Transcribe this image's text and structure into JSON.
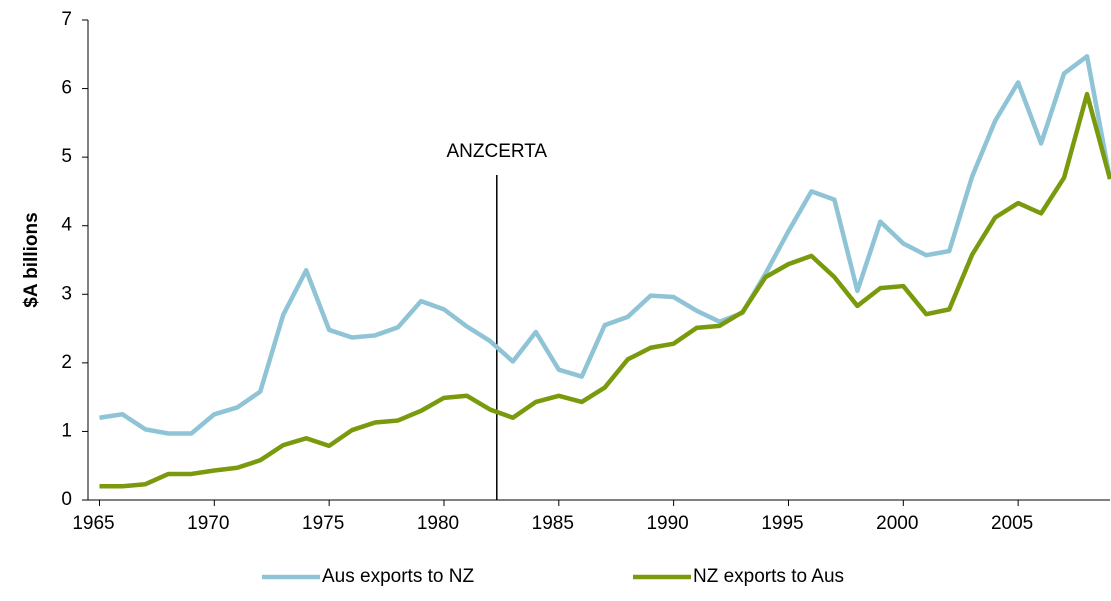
{
  "chart_data": {
    "type": "line",
    "y_label": "$A billions",
    "x": [
      1965,
      1966,
      1967,
      1968,
      1969,
      1970,
      1971,
      1972,
      1973,
      1974,
      1975,
      1976,
      1977,
      1978,
      1979,
      1980,
      1981,
      1982,
      1983,
      1984,
      1985,
      1986,
      1987,
      1988,
      1989,
      1990,
      1991,
      1992,
      1993,
      1994,
      1995,
      1996,
      1997,
      1998,
      1999,
      2000,
      2001,
      2002,
      2003,
      2004,
      2005,
      2006,
      2007,
      2008,
      2009
    ],
    "series": [
      {
        "name": "Aus exports to NZ",
        "color": "#8fc3d6",
        "values": [
          1.2,
          1.25,
          1.03,
          0.97,
          0.97,
          1.25,
          1.35,
          1.58,
          2.7,
          3.35,
          2.48,
          2.37,
          2.4,
          2.52,
          2.9,
          2.78,
          2.53,
          2.32,
          2.02,
          2.45,
          1.9,
          1.8,
          2.55,
          2.67,
          2.98,
          2.96,
          2.76,
          2.6,
          2.73,
          3.3,
          3.92,
          4.5,
          4.38,
          3.05,
          4.06,
          3.74,
          3.57,
          3.63,
          4.72,
          5.53,
          6.09,
          5.2,
          6.22,
          6.47,
          4.68
        ]
      },
      {
        "name": "NZ exports to Aus",
        "color": "#7a9a0e",
        "values": [
          0.2,
          0.2,
          0.23,
          0.38,
          0.38,
          0.43,
          0.47,
          0.58,
          0.8,
          0.9,
          0.79,
          1.02,
          1.13,
          1.16,
          1.3,
          1.49,
          1.52,
          1.32,
          1.2,
          1.43,
          1.52,
          1.43,
          1.64,
          2.05,
          2.22,
          2.28,
          2.51,
          2.54,
          2.74,
          3.25,
          3.44,
          3.56,
          3.25,
          2.83,
          3.09,
          3.12,
          2.71,
          2.78,
          3.58,
          4.12,
          4.33,
          4.18,
          4.7,
          5.92,
          4.68
        ]
      }
    ],
    "annotation": {
      "text": "ANZCERTA",
      "x": 1982.3
    },
    "xlim": [
      1964.5,
      2009
    ],
    "xticks": [
      1965,
      1970,
      1975,
      1980,
      1985,
      1990,
      1995,
      2000,
      2005
    ],
    "ylim": [
      0,
      7
    ],
    "yticks": [
      0,
      1,
      2,
      3,
      4,
      5,
      6,
      7
    ],
    "legend": "bottom"
  }
}
